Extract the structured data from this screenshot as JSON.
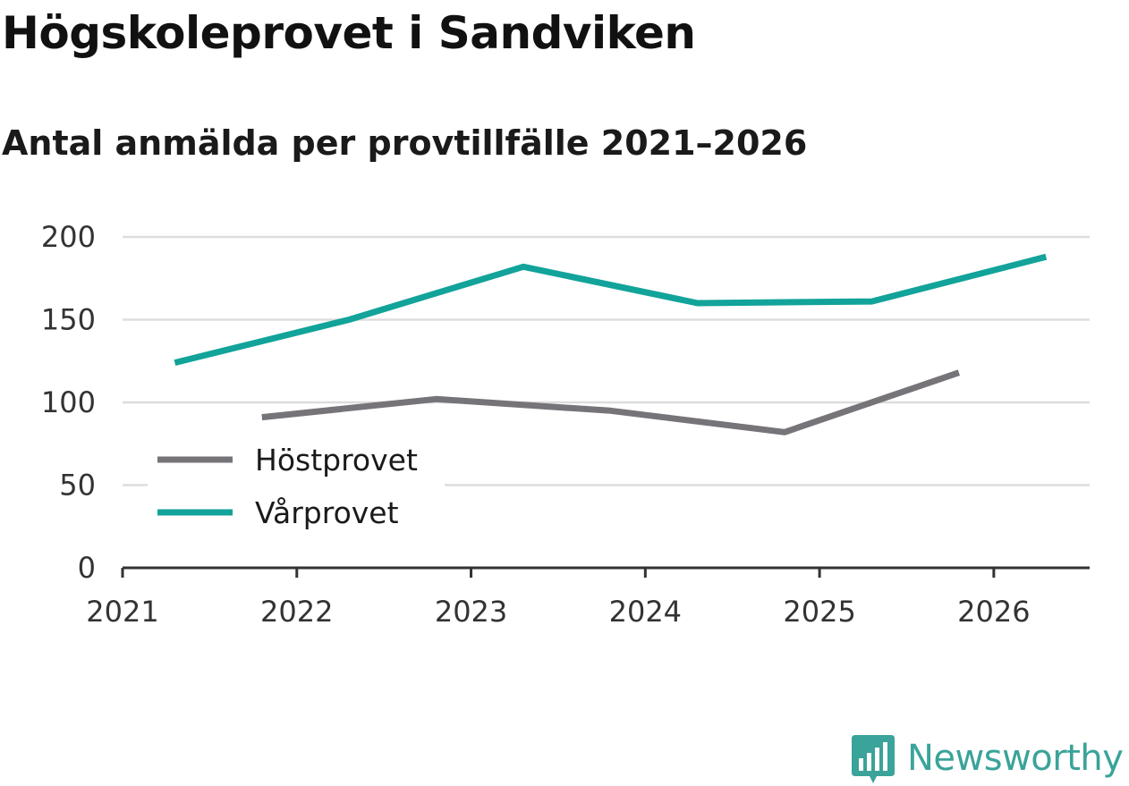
{
  "chart_data": {
    "type": "line",
    "title": "Högskoleprovet i Sandviken",
    "subtitle": "Antal anmälda per provtillfälle 2021–2026",
    "xlabel": "",
    "ylabel": "",
    "xlim": [
      2021,
      2026.55
    ],
    "ylim": [
      0,
      200
    ],
    "yticks": [
      0,
      50,
      100,
      150,
      200
    ],
    "xticks": [
      2021,
      2022,
      2023,
      2024,
      2025,
      2026
    ],
    "xtick_labels": [
      "2021",
      "2022",
      "2023",
      "2024",
      "2025",
      "2026"
    ],
    "grid": true,
    "legend_position": "lower-left",
    "series": [
      {
        "name": "Höstprovet",
        "color": "#767479",
        "x": [
          2021.8,
          2022.8,
          2023.8,
          2024.8,
          2025.8
        ],
        "values": [
          91,
          102,
          95,
          82,
          118
        ]
      },
      {
        "name": "Vårprovet",
        "color": "#12a39a",
        "x": [
          2021.3,
          2022.3,
          2023.3,
          2024.3,
          2025.3,
          2026.3
        ],
        "values": [
          124,
          150,
          182,
          160,
          161,
          188
        ]
      }
    ]
  },
  "brand": {
    "name": "Newsworthy",
    "icon": "newsworthy-logo-icon",
    "color": "#3aa39a"
  }
}
